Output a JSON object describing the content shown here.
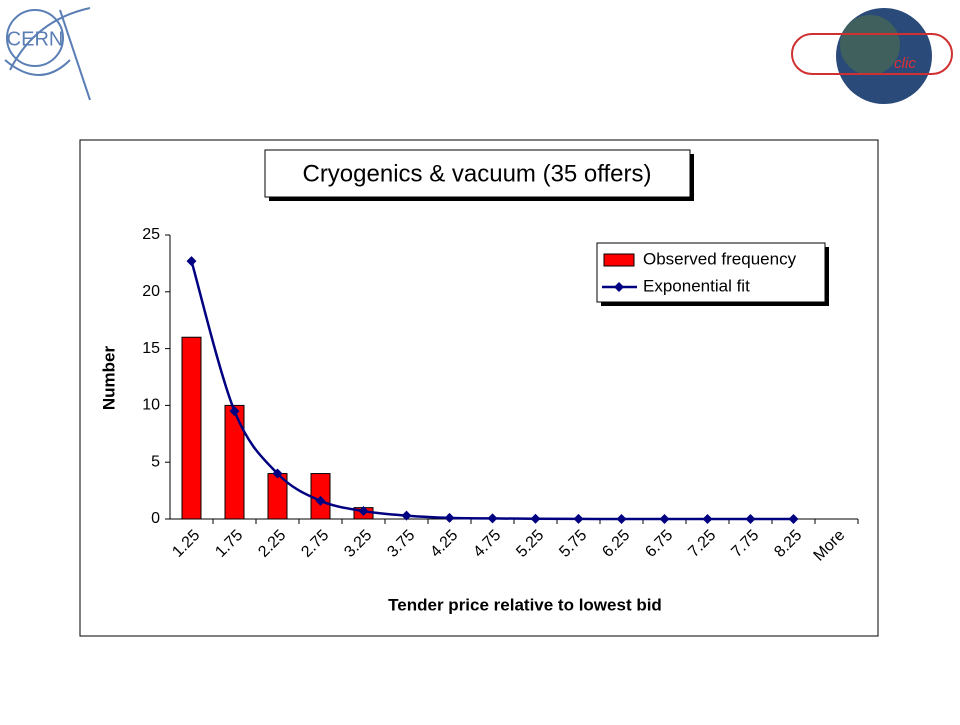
{
  "logos": {
    "left": "CERN",
    "right": "clic"
  },
  "chart_data": {
    "type": "bar",
    "title": "Cryogenics & vacuum (35 offers)",
    "x_label": "Tender price relative to lowest bid",
    "y_label": "Number",
    "categories": [
      "1.25",
      "1.75",
      "2.25",
      "2.75",
      "3.25",
      "3.75",
      "4.25",
      "4.75",
      "5.25",
      "5.75",
      "6.25",
      "6.75",
      "7.25",
      "7.75",
      "8.25",
      "More"
    ],
    "series": [
      {
        "name": "Observed frequency",
        "type": "bar",
        "color": "#ff0000",
        "values": [
          16,
          10,
          4,
          4,
          1,
          0,
          0,
          0,
          0,
          0,
          0,
          0,
          0,
          0,
          0,
          0
        ]
      },
      {
        "name": "Exponential fit",
        "type": "line",
        "color": "#000080",
        "values": [
          22.7,
          9.5,
          4.0,
          1.6,
          0.7,
          0.3,
          0.1,
          0.05,
          0.02,
          0.01,
          0,
          0,
          0,
          0,
          0,
          null
        ]
      }
    ],
    "ylim": [
      0,
      25
    ],
    "yticks": [
      0,
      5,
      10,
      15,
      20,
      25
    ],
    "legend": "top-right"
  }
}
